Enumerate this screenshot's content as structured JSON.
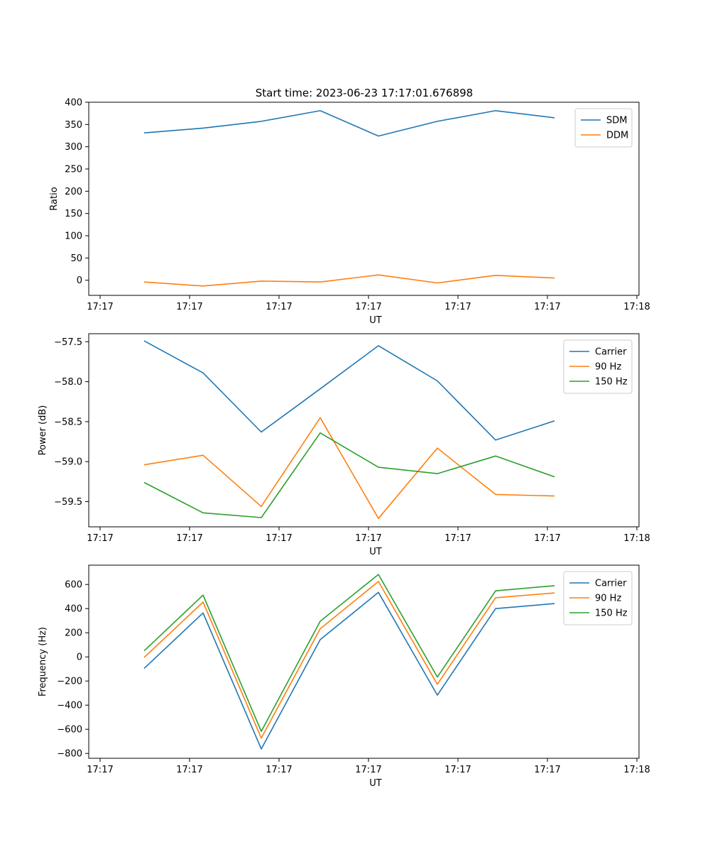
{
  "figure": {
    "title": "Start time: 2023-06-23 17:17:01.676898"
  },
  "colors": {
    "c0": "#1f77b4",
    "c1": "#ff7f0e",
    "c2": "#2ca02c"
  },
  "chart_data": [
    {
      "type": "line",
      "title": "Start time: 2023-06-23 17:17:01.676898",
      "xlabel": "UT",
      "ylabel": "Ratio",
      "x_tick_labels": [
        "17:17",
        "17:17",
        "17:17",
        "17:17",
        "17:17",
        "17:17",
        "17:18"
      ],
      "y_ticks": [
        0,
        50,
        100,
        150,
        200,
        250,
        300,
        350,
        400
      ],
      "ylim": [
        -34,
        400
      ],
      "legend_position": "upper right",
      "series": [
        {
          "name": "SDM",
          "color": "#1f77b4",
          "values": [
            331,
            342,
            357,
            381,
            324,
            357,
            381,
            365
          ]
        },
        {
          "name": "DDM",
          "color": "#ff7f0e",
          "values": [
            -4,
            -13,
            -2,
            -4,
            12,
            -6,
            11,
            5
          ]
        }
      ]
    },
    {
      "type": "line",
      "xlabel": "UT",
      "ylabel": "Power (dB)",
      "x_tick_labels": [
        "17:17",
        "17:17",
        "17:17",
        "17:17",
        "17:17",
        "17:17",
        "17:18"
      ],
      "y_ticks": [
        -59.5,
        -59.0,
        -58.5,
        -58.0,
        -57.5
      ],
      "y_tick_labels": [
        "−59.5",
        "−59.0",
        "−58.5",
        "−58.0",
        "−57.5"
      ],
      "ylim": [
        -59.815,
        -57.4
      ],
      "legend_position": "upper right",
      "series": [
        {
          "name": "Carrier",
          "color": "#1f77b4",
          "values": [
            -57.49,
            -57.89,
            -58.63,
            -58.09,
            -57.55,
            -57.99,
            -58.73,
            -58.49
          ]
        },
        {
          "name": "90 Hz",
          "color": "#ff7f0e",
          "values": [
            -59.04,
            -58.92,
            -59.56,
            -58.45,
            -59.71,
            -58.83,
            -59.41,
            -59.43
          ]
        },
        {
          "name": "150 Hz",
          "color": "#2ca02c",
          "values": [
            -59.26,
            -59.64,
            -59.7,
            -58.64,
            -59.07,
            -59.15,
            -58.93,
            -59.19
          ]
        }
      ]
    },
    {
      "type": "line",
      "xlabel": "UT",
      "ylabel": "Frequency (Hz)",
      "x_tick_labels": [
        "17:17",
        "17:17",
        "17:17",
        "17:17",
        "17:17",
        "17:17",
        "17:18"
      ],
      "y_ticks": [
        -800,
        -600,
        -400,
        -200,
        0,
        200,
        400,
        600
      ],
      "y_tick_labels": [
        "−800",
        "−600",
        "−400",
        "−200",
        "0",
        "200",
        "400",
        "600"
      ],
      "ylim": [
        -840,
        760
      ],
      "legend_position": "upper right",
      "series": [
        {
          "name": "Carrier",
          "color": "#1f77b4",
          "values": [
            -95,
            364,
            -763,
            143,
            535,
            -317,
            400,
            442
          ]
        },
        {
          "name": "90 Hz",
          "color": "#ff7f0e",
          "values": [
            -5,
            454,
            -673,
            233,
            625,
            -227,
            490,
            530
          ]
        },
        {
          "name": "150 Hz",
          "color": "#2ca02c",
          "values": [
            50,
            512,
            -617,
            295,
            683,
            -167,
            547,
            590
          ]
        }
      ]
    }
  ]
}
